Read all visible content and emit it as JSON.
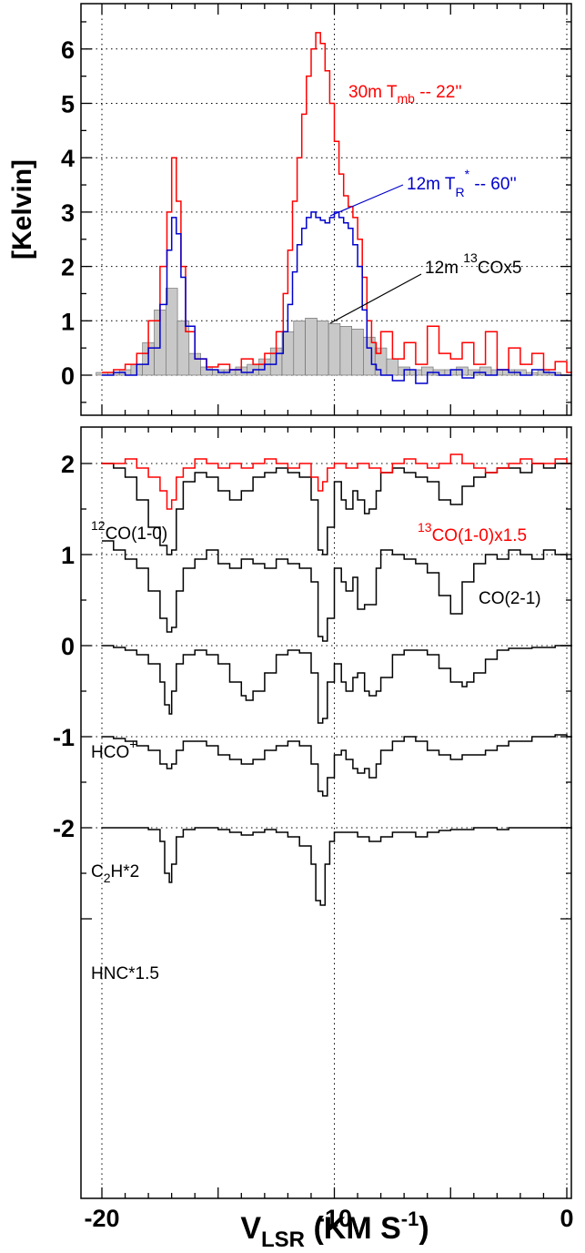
{
  "chart_data": [
    {
      "type": "line",
      "panel": "top",
      "ylabel": "[Kelvin]",
      "xlim": [
        -20.5,
        0.5
      ],
      "ylim": [
        -0.45,
        6.8
      ],
      "yticks": [
        "6",
        "5",
        "4",
        "3",
        "2",
        "1",
        "0"
      ],
      "ytick_values": [
        6,
        5,
        4,
        3,
        2,
        1,
        0
      ],
      "grid": "dotted",
      "series": [
        {
          "name_parts": [
            "30m T",
            "mb",
            " -- 22''"
          ],
          "color": "#ff0000",
          "style": "step",
          "x": [
            -20,
            -19.5,
            -19,
            -18.5,
            -18,
            -17.5,
            -17.2,
            -17,
            -16.8,
            -16.6,
            -16.4,
            -16,
            -15.5,
            -15,
            -14.5,
            -14,
            -13.5,
            -13,
            -12.5,
            -12.2,
            -12,
            -11.8,
            -11.6,
            -11.4,
            -11.2,
            -11,
            -10.8,
            -10.6,
            -10.4,
            -10.2,
            -10,
            -9.8,
            -9.6,
            -9.4,
            -9.2,
            -9,
            -8.8,
            -8.6,
            -8.4,
            -8.2,
            -8,
            -7.5,
            -7,
            -6.5,
            -6,
            -5.5,
            -5,
            -4.5,
            -4,
            -3.5,
            -3,
            -2.5,
            -2,
            -1.5,
            -1,
            -0.5,
            0
          ],
          "y": [
            0.05,
            0.1,
            0.2,
            0.4,
            1.0,
            2.0,
            3.0,
            4.0,
            3.2,
            2.0,
            0.8,
            0.3,
            0.15,
            0.2,
            0.1,
            0.3,
            0.2,
            0.4,
            0.8,
            1.5,
            2.3,
            3.2,
            4.0,
            4.8,
            5.5,
            6.0,
            6.3,
            6.1,
            5.6,
            5.0,
            4.3,
            3.7,
            3.3,
            3.1,
            2.9,
            2.5,
            1.8,
            1.0,
            0.6,
            0.4,
            0.8,
            0.3,
            0.6,
            0.2,
            0.9,
            0.4,
            0.3,
            0.6,
            0.2,
            0.8,
            0.1,
            0.5,
            0.2,
            0.4,
            0.1,
            0.25,
            0.05
          ]
        },
        {
          "name_parts": [
            "12m T",
            "R",
            "*",
            " -- 60''"
          ],
          "color": "#0000cc",
          "style": "step",
          "x": [
            -20,
            -19.5,
            -19,
            -18.5,
            -18,
            -17.5,
            -17.2,
            -17,
            -16.8,
            -16.6,
            -16.4,
            -16,
            -15.5,
            -15,
            -14.5,
            -14,
            -13.5,
            -13,
            -12.5,
            -12.2,
            -12,
            -11.8,
            -11.6,
            -11.4,
            -11.2,
            -11,
            -10.8,
            -10.6,
            -10.4,
            -10.2,
            -10,
            -9.8,
            -9.6,
            -9.4,
            -9.2,
            -9,
            -8.8,
            -8.6,
            -8.4,
            -8.2,
            -8,
            -7.5,
            -7,
            -6.5,
            -6,
            -5.5,
            -5,
            -4.5,
            -4,
            -3.5,
            -3,
            -2.5,
            -2,
            -1.5,
            -1,
            -0.5,
            0
          ],
          "y": [
            0,
            0.05,
            0.0,
            0.2,
            0.5,
            1.3,
            2.3,
            2.9,
            2.6,
            1.8,
            0.9,
            0.3,
            0.1,
            0.05,
            0.1,
            0.05,
            0.1,
            0.2,
            0.4,
            0.8,
            1.3,
            1.9,
            2.4,
            2.7,
            2.9,
            3.0,
            2.9,
            2.85,
            2.8,
            2.9,
            3.0,
            2.9,
            2.8,
            2.7,
            2.4,
            2.0,
            1.2,
            0.5,
            0.2,
            0.1,
            0.0,
            -0.1,
            0.1,
            -0.15,
            0.05,
            0.0,
            0.1,
            -0.05,
            0.05,
            0.0,
            0.1,
            0.05,
            0.0,
            0.1,
            0.05,
            0.0,
            0.0
          ]
        },
        {
          "name_parts": [
            "12m ",
            "13",
            "COx5"
          ],
          "color": "#c8c8c8",
          "style": "bar",
          "x": [
            -20,
            -19.5,
            -19,
            -18.5,
            -18,
            -17.5,
            -17,
            -16.5,
            -16,
            -15.5,
            -15,
            -14.5,
            -14,
            -13.5,
            -13,
            -12.5,
            -12,
            -11.5,
            -11,
            -10.5,
            -10,
            -9.5,
            -9,
            -8.5,
            -8,
            -7.5,
            -7,
            -6.5,
            -6,
            -5.5,
            -5,
            -4.5,
            -4,
            -3.5,
            -3,
            -2.5,
            -2,
            -1.5,
            -1,
            -0.5
          ],
          "y": [
            0.05,
            0.05,
            0.1,
            0.2,
            0.6,
            1.2,
            1.6,
            1.0,
            0.4,
            0.15,
            0.1,
            0.1,
            0.15,
            0.2,
            0.3,
            0.5,
            0.8,
            1.0,
            1.05,
            1.0,
            0.95,
            0.9,
            0.85,
            0.7,
            0.5,
            0.3,
            0.15,
            0.1,
            0.15,
            0.1,
            0.1,
            0.15,
            0.1,
            0.15,
            0.1,
            0.1,
            0.1,
            0.05,
            0.1,
            0.05
          ]
        }
      ]
    },
    {
      "type": "line",
      "panel": "bottom",
      "xlabel_parts": [
        "V",
        "LSR",
        " (KM S",
        "-1",
        ")"
      ],
      "xlim": [
        -20.5,
        0.5
      ],
      "ylim": [
        -2.7,
        3.5
      ],
      "xticks": [
        "-20",
        "-10",
        "0"
      ],
      "xtick_values": [
        -20,
        -10,
        0
      ],
      "yticks": [
        "2",
        "1",
        "0",
        "-1",
        "-2"
      ],
      "ytick_values": [
        2,
        1,
        0,
        -1,
        -2
      ],
      "grid": "dotted",
      "series": [
        {
          "name_parts": [
            "12",
            "CO(1-0)"
          ],
          "color": "#000000",
          "style": "step",
          "x": [
            -20,
            -19.5,
            -19,
            -18.5,
            -18,
            -17.5,
            -17.2,
            -17,
            -16.8,
            -16.5,
            -16,
            -15.5,
            -15,
            -14.5,
            -14,
            -13.5,
            -13,
            -12.5,
            -12,
            -11.5,
            -11,
            -10.7,
            -10.5,
            -10.3,
            -10,
            -9.7,
            -9.5,
            -9.2,
            -9,
            -8.7,
            -8.5,
            -8.2,
            -8,
            -7.5,
            -7,
            -6.5,
            -6,
            -5.5,
            -5,
            -4.5,
            -4,
            -3.5,
            -3,
            -2.5,
            -2,
            -1.5,
            -1,
            -0.5,
            0
          ],
          "y": [
            2.0,
            1.95,
            1.85,
            1.6,
            1.3,
            1.1,
            1.0,
            1.05,
            1.5,
            1.8,
            1.9,
            1.85,
            1.7,
            1.6,
            1.7,
            1.85,
            1.9,
            1.95,
            1.9,
            1.85,
            1.6,
            1.05,
            1.0,
            1.3,
            1.8,
            1.6,
            1.5,
            1.7,
            1.6,
            1.45,
            1.5,
            1.7,
            1.9,
            1.95,
            1.9,
            1.85,
            1.8,
            1.6,
            1.55,
            1.75,
            1.85,
            1.9,
            1.95,
            1.95,
            1.9,
            2.0,
            1.95,
            2.0,
            2.0
          ]
        },
        {
          "name_parts": [
            "13",
            "CO(1-0)x1.5"
          ],
          "color": "#ff0000",
          "style": "step",
          "x": [
            -20,
            -19.5,
            -19,
            -18.5,
            -18,
            -17.5,
            -17.2,
            -17,
            -16.8,
            -16.5,
            -16,
            -15.5,
            -15,
            -14.5,
            -14,
            -13.5,
            -13,
            -12.5,
            -12,
            -11.5,
            -11,
            -10.7,
            -10.5,
            -10.3,
            -10,
            -9.5,
            -9,
            -8.5,
            -8,
            -7.5,
            -7,
            -6.5,
            -6,
            -5.5,
            -5,
            -4.5,
            -4,
            -3.5,
            -3,
            -2.5,
            -2,
            -1.5,
            -1,
            -0.5,
            0
          ],
          "y": [
            2.0,
            2.0,
            2.05,
            1.95,
            1.85,
            1.7,
            1.5,
            1.6,
            1.85,
            1.95,
            2.05,
            2.0,
            1.95,
            2.0,
            1.95,
            2.0,
            2.05,
            2.0,
            1.95,
            2.0,
            1.85,
            1.7,
            1.8,
            1.95,
            2.0,
            1.95,
            2.0,
            1.95,
            1.9,
            2.0,
            2.05,
            2.0,
            1.95,
            2.0,
            2.1,
            2.0,
            1.95,
            1.9,
            1.95,
            2.0,
            2.05,
            2.0,
            2.0,
            2.05,
            2.0
          ]
        },
        {
          "name_parts": [
            "CO(2-1)"
          ],
          "color": "#000000",
          "style": "step",
          "x": [
            -20,
            -19.5,
            -19,
            -18.5,
            -18,
            -17.5,
            -17.2,
            -17,
            -16.8,
            -16.5,
            -16,
            -15.5,
            -15,
            -14.5,
            -14,
            -13.5,
            -13,
            -12.5,
            -12,
            -11.5,
            -11,
            -10.7,
            -10.5,
            -10.3,
            -10,
            -9.7,
            -9.5,
            -9.2,
            -9,
            -8.7,
            -8.5,
            -8.2,
            -8,
            -7.5,
            -7,
            -6.5,
            -6,
            -5.5,
            -5,
            -4.5,
            -4,
            -3.5,
            -3,
            -2.5,
            -2,
            -1.5,
            -1,
            -0.5,
            0
          ],
          "y": [
            1.15,
            1.05,
            0.95,
            0.85,
            0.6,
            0.3,
            0.15,
            0.2,
            0.6,
            0.85,
            0.95,
            1.05,
            0.9,
            0.85,
            0.95,
            0.9,
            0.85,
            0.95,
            0.9,
            0.85,
            0.7,
            0.1,
            0.05,
            0.3,
            0.85,
            0.7,
            0.6,
            0.75,
            0.4,
            0.45,
            0.45,
            0.85,
            1.05,
            1.0,
            0.95,
            0.9,
            0.8,
            0.55,
            0.35,
            0.7,
            0.9,
            1.0,
            0.95,
            1.05,
            1.0,
            0.95,
            1.05,
            1.0,
            0.95
          ]
        },
        {
          "name_parts": [
            "HCO",
            "+"
          ],
          "color": "#000000",
          "style": "step",
          "x": [
            -20,
            -19.5,
            -19,
            -18.5,
            -18,
            -17.5,
            -17.3,
            -17.1,
            -17,
            -16.8,
            -16.5,
            -16,
            -15.5,
            -15,
            -14.5,
            -14,
            -13.8,
            -13.5,
            -13,
            -12.5,
            -12,
            -11.5,
            -11,
            -10.7,
            -10.5,
            -10.3,
            -10,
            -9.7,
            -9.5,
            -9.2,
            -9,
            -8.7,
            -8.5,
            -8.2,
            -8,
            -7.5,
            -7,
            -6.5,
            -6,
            -5.5,
            -5,
            -4.5,
            -4.3,
            -4,
            -3.5,
            -3,
            -2.5,
            -2,
            -1.5,
            -1,
            -0.5,
            0
          ],
          "y": [
            0,
            -0.02,
            -0.05,
            -0.1,
            -0.2,
            -0.4,
            -0.65,
            -0.75,
            -0.5,
            -0.2,
            -0.1,
            -0.05,
            -0.1,
            -0.2,
            -0.4,
            -0.55,
            -0.6,
            -0.5,
            -0.3,
            -0.1,
            -0.05,
            -0.08,
            -0.3,
            -0.85,
            -0.8,
            -0.4,
            -0.2,
            -0.4,
            -0.5,
            -0.35,
            -0.3,
            -0.5,
            -0.55,
            -0.5,
            -0.35,
            -0.1,
            -0.05,
            -0.05,
            -0.1,
            -0.25,
            -0.4,
            -0.45,
            -0.4,
            -0.3,
            -0.15,
            -0.05,
            -0.03,
            -0.03,
            -0.02,
            -0.02,
            0,
            0
          ]
        },
        {
          "name_parts": [
            "C",
            "2",
            "H*2"
          ],
          "color": "#000000",
          "style": "step",
          "x": [
            -20,
            -19.5,
            -19,
            -18.5,
            -18,
            -17.5,
            -17.2,
            -17,
            -16.8,
            -16.5,
            -16,
            -15.5,
            -15,
            -14.5,
            -14,
            -13.5,
            -13,
            -12.5,
            -12,
            -11.5,
            -11,
            -10.7,
            -10.5,
            -10.3,
            -10,
            -9.7,
            -9.5,
            -9.2,
            -9,
            -8.7,
            -8.5,
            -8.2,
            -8,
            -7.5,
            -7,
            -6.5,
            -6,
            -5.5,
            -5,
            -4.5,
            -4,
            -3.5,
            -3,
            -2.5,
            -2,
            -1.5,
            -1,
            -0.5,
            0
          ],
          "y": [
            -1.0,
            -1.02,
            -1.05,
            -1.1,
            -1.15,
            -1.3,
            -1.35,
            -1.3,
            -1.15,
            -1.05,
            -1.05,
            -1.1,
            -1.2,
            -1.25,
            -1.3,
            -1.25,
            -1.15,
            -1.1,
            -1.05,
            -1.1,
            -1.3,
            -1.6,
            -1.65,
            -1.45,
            -1.2,
            -1.15,
            -1.25,
            -1.35,
            -1.4,
            -1.35,
            -1.45,
            -1.3,
            -1.15,
            -1.05,
            -1.0,
            -1.05,
            -1.15,
            -1.2,
            -1.25,
            -1.2,
            -1.2,
            -1.15,
            -1.1,
            -1.05,
            -1.05,
            -1.0,
            -1.0,
            -0.98,
            -1.0
          ]
        },
        {
          "name_parts": [
            "HNC*1.5"
          ],
          "color": "#000000",
          "style": "step",
          "x": [
            -20,
            -19.5,
            -19,
            -18.5,
            -18,
            -17.5,
            -17.3,
            -17.1,
            -17,
            -16.8,
            -16.5,
            -16,
            -15.5,
            -15,
            -14.5,
            -14,
            -13.5,
            -13,
            -12.5,
            -12,
            -11.5,
            -11,
            -10.8,
            -10.6,
            -10.4,
            -10.2,
            -10,
            -9.5,
            -9,
            -8.5,
            -8,
            -7.5,
            -7,
            -6.5,
            -6,
            -5.5,
            -5,
            -4.5,
            -4,
            -3.5,
            -3,
            -2.5,
            -2,
            -1.5,
            -1,
            -0.5,
            0
          ],
          "y": [
            -2.0,
            -2.0,
            -2.0,
            -2.0,
            -2.02,
            -2.15,
            -2.5,
            -2.6,
            -2.4,
            -2.1,
            -2.02,
            -2.0,
            -2.0,
            -2.02,
            -2.05,
            -2.08,
            -2.05,
            -2.02,
            -2.05,
            -2.1,
            -2.2,
            -2.4,
            -2.8,
            -2.85,
            -2.4,
            -2.15,
            -2.05,
            -2.05,
            -2.1,
            -2.15,
            -2.1,
            -2.05,
            -2.05,
            -2.1,
            -2.05,
            -2.03,
            -2.02,
            -2.02,
            -2.0,
            -2.0,
            -2.02,
            -2.0,
            -2.0,
            -2.0,
            -2.0,
            -2.0,
            -2.0
          ]
        }
      ]
    }
  ]
}
